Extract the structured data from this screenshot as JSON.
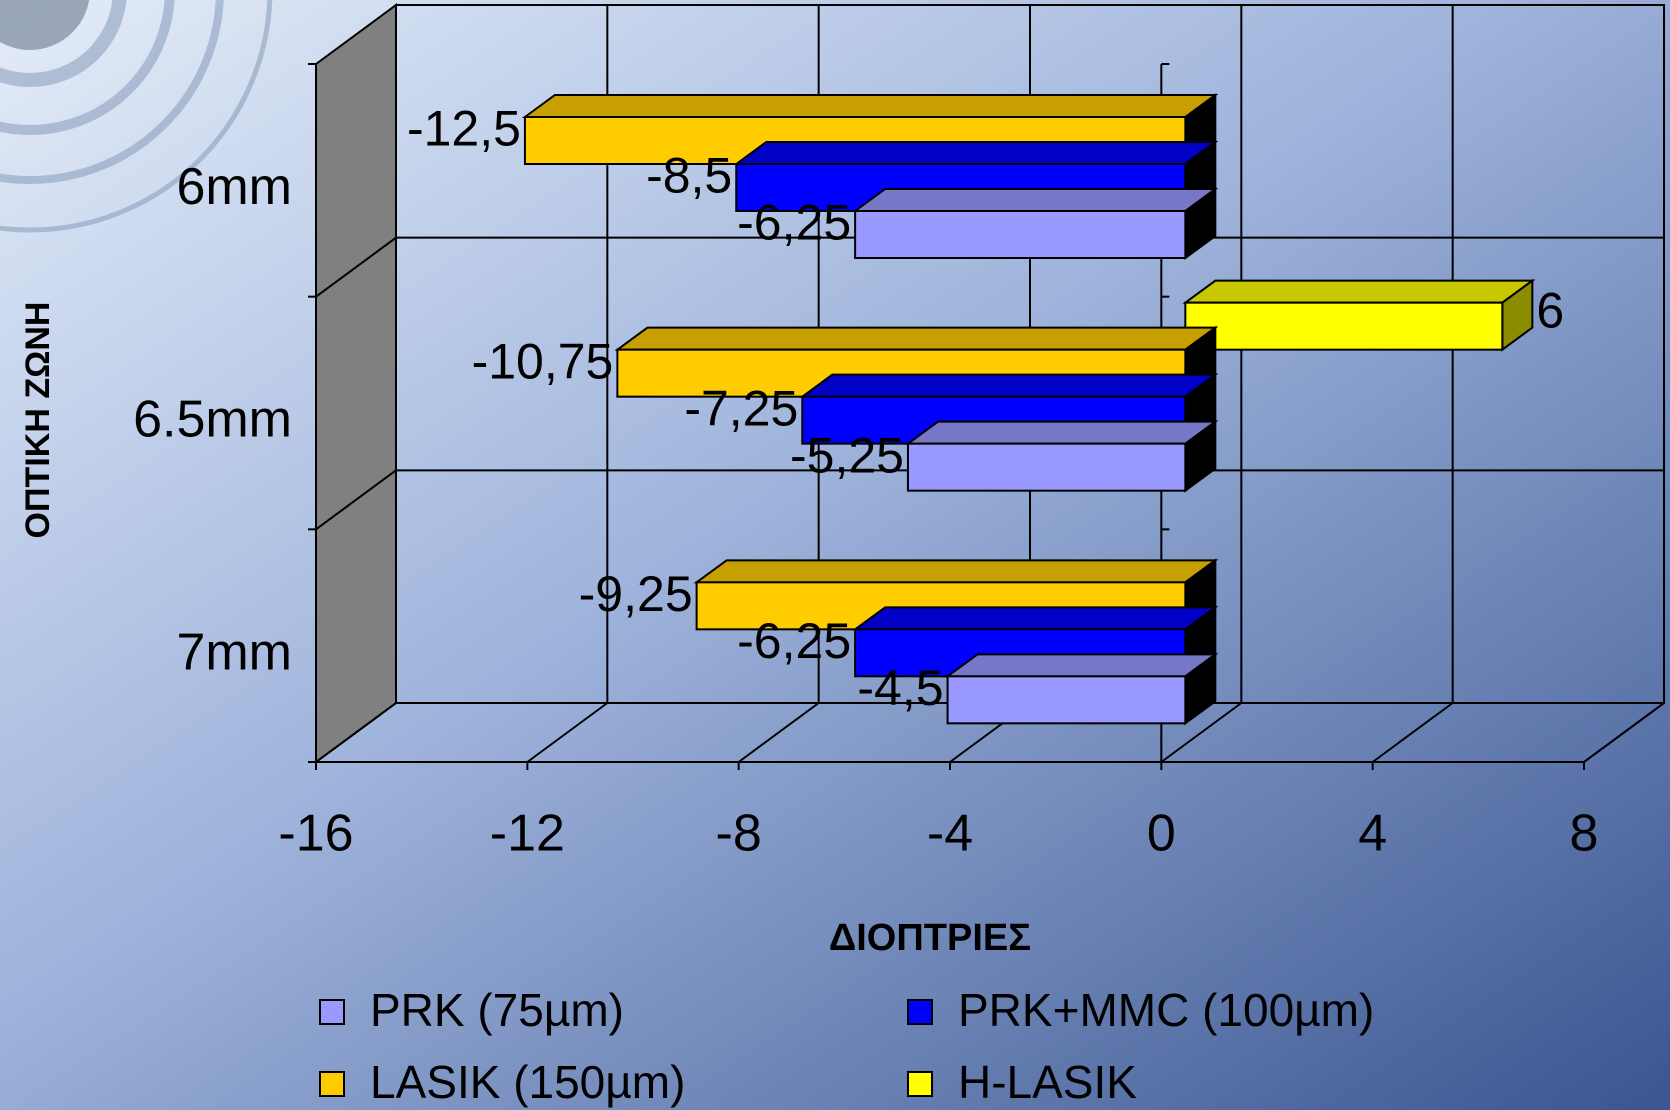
{
  "chart_data": {
    "type": "bar3d_horizontal",
    "x_axis_title": "ΔΙΟΠΤΡΙΕΣ",
    "y_axis_title": "ΟΠΤΙΚΗ ΖΩΝΗ",
    "categories": [
      "6mm",
      "6.5mm",
      "7mm"
    ],
    "series": [
      {
        "name": "PRK (75µm)",
        "color": "#9999ff",
        "values": [
          -6.25,
          -5.25,
          -4.5
        ],
        "value_labels": [
          "-6,25",
          "-5,25",
          "-4,5"
        ]
      },
      {
        "name": "PRK+MMC (100µm)",
        "color": "#0000ff",
        "values": [
          -8.5,
          -7.25,
          -6.25
        ],
        "value_labels": [
          "-8,5",
          "-7,25",
          "-6,25"
        ]
      },
      {
        "name": "LASIK (150µm)",
        "color": "#ffcc00",
        "values": [
          -12.5,
          -10.75,
          -9.25
        ],
        "value_labels": [
          "-12,5",
          "-10,75",
          "-9,25"
        ]
      },
      {
        "name": "H-LASIK",
        "color": "#ffff00",
        "values": [
          null,
          6,
          null
        ]
      }
    ],
    "xlim": [
      -16,
      8
    ],
    "xticks": [
      -16,
      -12,
      -8,
      -4,
      0,
      4,
      8
    ],
    "grid": true
  }
}
